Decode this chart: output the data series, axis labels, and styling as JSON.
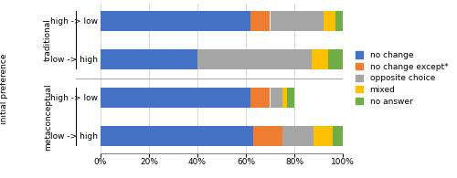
{
  "bar_labels": [
    [
      "high -> low",
      "low -> high"
    ],
    [
      "high -> low",
      "low -> high"
    ]
  ],
  "group_labels": [
    "traditional",
    "metaconceptual"
  ],
  "segments": {
    "no change": [
      62,
      40,
      62,
      63
    ],
    "no change except*": [
      8,
      0,
      8,
      12
    ],
    "opposite choice": [
      22,
      47,
      5,
      13
    ],
    "mixed": [
      5,
      7,
      2,
      8
    ],
    "no answer": [
      3,
      6,
      3,
      4
    ]
  },
  "colors": {
    "no change": "#4472C4",
    "no change except*": "#ED7D31",
    "opposite choice": "#A5A5A5",
    "mixed": "#FFC000",
    "no answer": "#70AD47"
  },
  "ylabel": "initial preference",
  "xtick_labels": [
    "0%",
    "20%",
    "40%",
    "60%",
    "80%",
    "100%"
  ],
  "figsize": [
    5.0,
    1.95
  ],
  "dpi": 100,
  "background_color": "#ffffff",
  "grid_color": "#d9d9d9"
}
